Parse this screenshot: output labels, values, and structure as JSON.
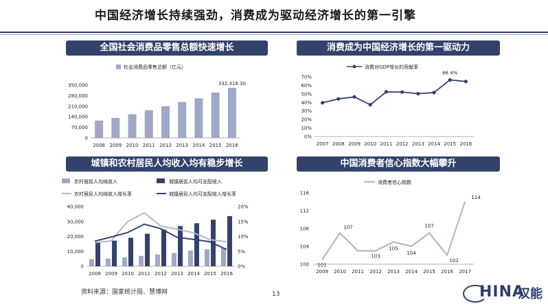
{
  "page": {
    "title": "中国经济增长持续强劲，消费成为驱动经济增长的第一引擎",
    "source": "资料来源：国家统计局、慧博网",
    "page_number": "13",
    "logo_text": "HINA",
    "logo_cn": "汉能",
    "logo_letter": "C"
  },
  "colors": {
    "navy": "#33426b",
    "light_bar": "#9fa8c8",
    "gray_line": "#b5b8c6",
    "accent": "#2f3f68"
  },
  "panels": [
    {
      "key": "retail",
      "title": "全国社会消费品零售总额快速增长"
    },
    {
      "key": "gdp",
      "title": "消费成为中国经济增长的第一驱动力"
    },
    {
      "key": "income",
      "title": "城镇和农村居民人均收入均有稳步增长"
    },
    {
      "key": "confidence",
      "title": "中国消费者信心指数大幅攀升"
    }
  ],
  "chart_data": [
    {
      "id": "retail",
      "type": "bar",
      "title": "全国社会消费品零售总额快速增长",
      "legend": "社会消费品零售总额（亿元）",
      "categories": [
        "2008",
        "2009",
        "2010",
        "2011",
        "2012",
        "2013",
        "2014",
        "2015",
        "2016"
      ],
      "values": [
        114830,
        132678,
        156998,
        183919,
        210307,
        237810,
        262394,
        300931,
        332316.3
      ],
      "labeled_value": "332,316.30",
      "ylim": [
        0,
        350000
      ],
      "yticks": [
        "0",
        "70,000",
        "140,000",
        "210,000",
        "280,000",
        "350,000"
      ],
      "ytick_values": [
        0,
        70000,
        140000,
        210000,
        280000,
        350000
      ]
    },
    {
      "id": "gdp",
      "type": "line",
      "title": "消费成为中国经济增长的第一驱动力",
      "legend": "消费对GDP增长的贡献率",
      "categories": [
        "2007",
        "2008",
        "2009",
        "2010",
        "2011",
        "2012",
        "2013",
        "2014",
        "2015",
        "2016"
      ],
      "values": [
        39.6,
        44.2,
        46.5,
        37.3,
        52.4,
        52.2,
        50.3,
        51.6,
        66.4,
        64.6
      ],
      "labeled_value": "66.4%",
      "ylim": [
        0,
        70
      ],
      "yticks": [
        "0%",
        "10%",
        "20%",
        "30%",
        "40%",
        "50%",
        "60%",
        "70%"
      ],
      "ytick_values": [
        0,
        10,
        20,
        30,
        40,
        50,
        60,
        70
      ]
    },
    {
      "id": "income",
      "type": "bar",
      "title": "城镇和农村居民人均收入均有稳步增长",
      "categories": [
        "2008",
        "2009",
        "2010",
        "2011",
        "2012",
        "2013",
        "2014",
        "2015",
        "2016"
      ],
      "series": [
        {
          "name": "农村居民人均纯收入",
          "kind": "bar",
          "axis": "left",
          "values": [
            4761,
            5153,
            5919,
            6977,
            7917,
            8896,
            10489,
            11422,
            12363
          ]
        },
        {
          "name": "城镇居民人均可支配收入",
          "kind": "bar",
          "axis": "left",
          "values": [
            15781,
            17175,
            19109,
            21810,
            24565,
            26955,
            28844,
            31195,
            33616
          ]
        },
        {
          "name": "农村居民人均纯收入增长率",
          "kind": "line",
          "axis": "right",
          "values": [
            8.0,
            8.5,
            15.0,
            17.9,
            13.5,
            12.4,
            11.2,
            8.9,
            8.2
          ]
        },
        {
          "name": "城镇居民人均可支配收入增长率",
          "kind": "line",
          "axis": "right",
          "values": [
            8.4,
            9.8,
            11.3,
            14.1,
            12.6,
            9.7,
            9.0,
            8.2,
            5.6
          ]
        }
      ],
      "ylim_left": [
        0,
        40000
      ],
      "yticks_left": [
        "0",
        "10,000",
        "20,000",
        "30,000",
        "40,000"
      ],
      "ytick_values_left": [
        0,
        10000,
        20000,
        30000,
        40000
      ],
      "ylim_right": [
        0,
        20
      ],
      "yticks_right": [
        "0%",
        "5%",
        "10%",
        "15%",
        "20%"
      ],
      "ytick_values_right": [
        0,
        5,
        10,
        15,
        20
      ]
    },
    {
      "id": "confidence",
      "type": "line",
      "title": "中国消费者信心指数大幅攀升",
      "legend": "消费者信心指数",
      "categories": [
        "2009",
        "2010",
        "2011",
        "2012",
        "2013",
        "2014",
        "2015",
        "2016",
        "2017"
      ],
      "values": [
        101,
        107,
        103,
        103,
        105,
        104,
        107,
        102,
        114
      ],
      "ylim": [
        100,
        116
      ],
      "yticks": [
        "100",
        "104",
        "108",
        "112",
        "116"
      ],
      "ytick_values": [
        100,
        104,
        108,
        112,
        116
      ]
    }
  ]
}
